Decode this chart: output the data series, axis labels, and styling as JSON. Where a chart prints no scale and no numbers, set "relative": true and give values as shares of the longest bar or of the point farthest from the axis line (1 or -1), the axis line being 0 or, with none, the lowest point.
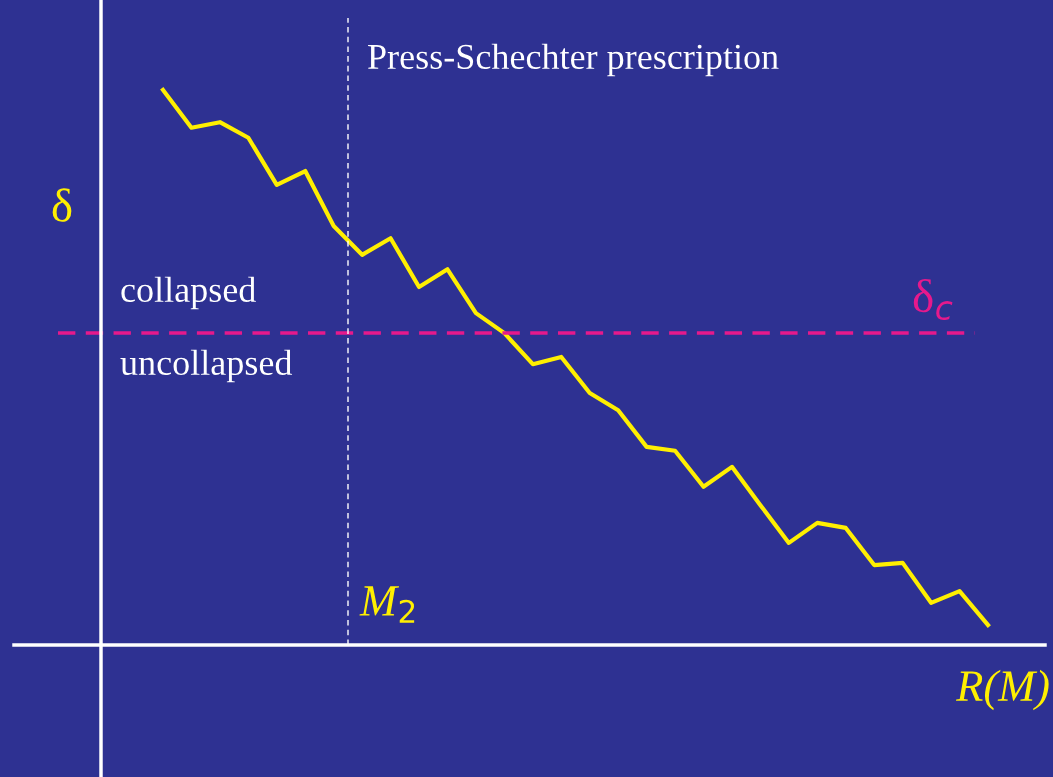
{
  "chart_data": {
    "type": "line",
    "relative": true,
    "ylabel": "δ",
    "xlabel": "R(M)",
    "categories": [
      null,
      null,
      null,
      null,
      null,
      null,
      null,
      null,
      null,
      null,
      null,
      null,
      null,
      null,
      null,
      null,
      null,
      null,
      null,
      null,
      null,
      null,
      null,
      null,
      null,
      null,
      null,
      null,
      null,
      null
    ],
    "series": [
      {
        "color": "#ffef00",
        "values": [
          1,
          0.932,
          0.942,
          0.914,
          0.829,
          0.854,
          0.755,
          0.703,
          0.733,
          0.645,
          0.677,
          0.598,
          0.562,
          0.506,
          0.519,
          0.454,
          0.423,
          0.357,
          0.35,
          0.285,
          0.321,
          0.252,
          0.184,
          0.22,
          0.211,
          0.144,
          0.148,
          0.076,
          0.097,
          0.036
        ]
      }
    ],
    "ref_lines": [
      {
        "axis": "y",
        "value": 0.562,
        "label": "δ$_{c}$",
        "color": "#e6198c",
        "line_style": "dashed"
      }
    ],
    "annotations": [
      "Press-Schechter prescription",
      "collapsed",
      "uncollapsed",
      "M$_{2}$"
    ],
    "marker": "none",
    "line_style": "solid"
  }
}
